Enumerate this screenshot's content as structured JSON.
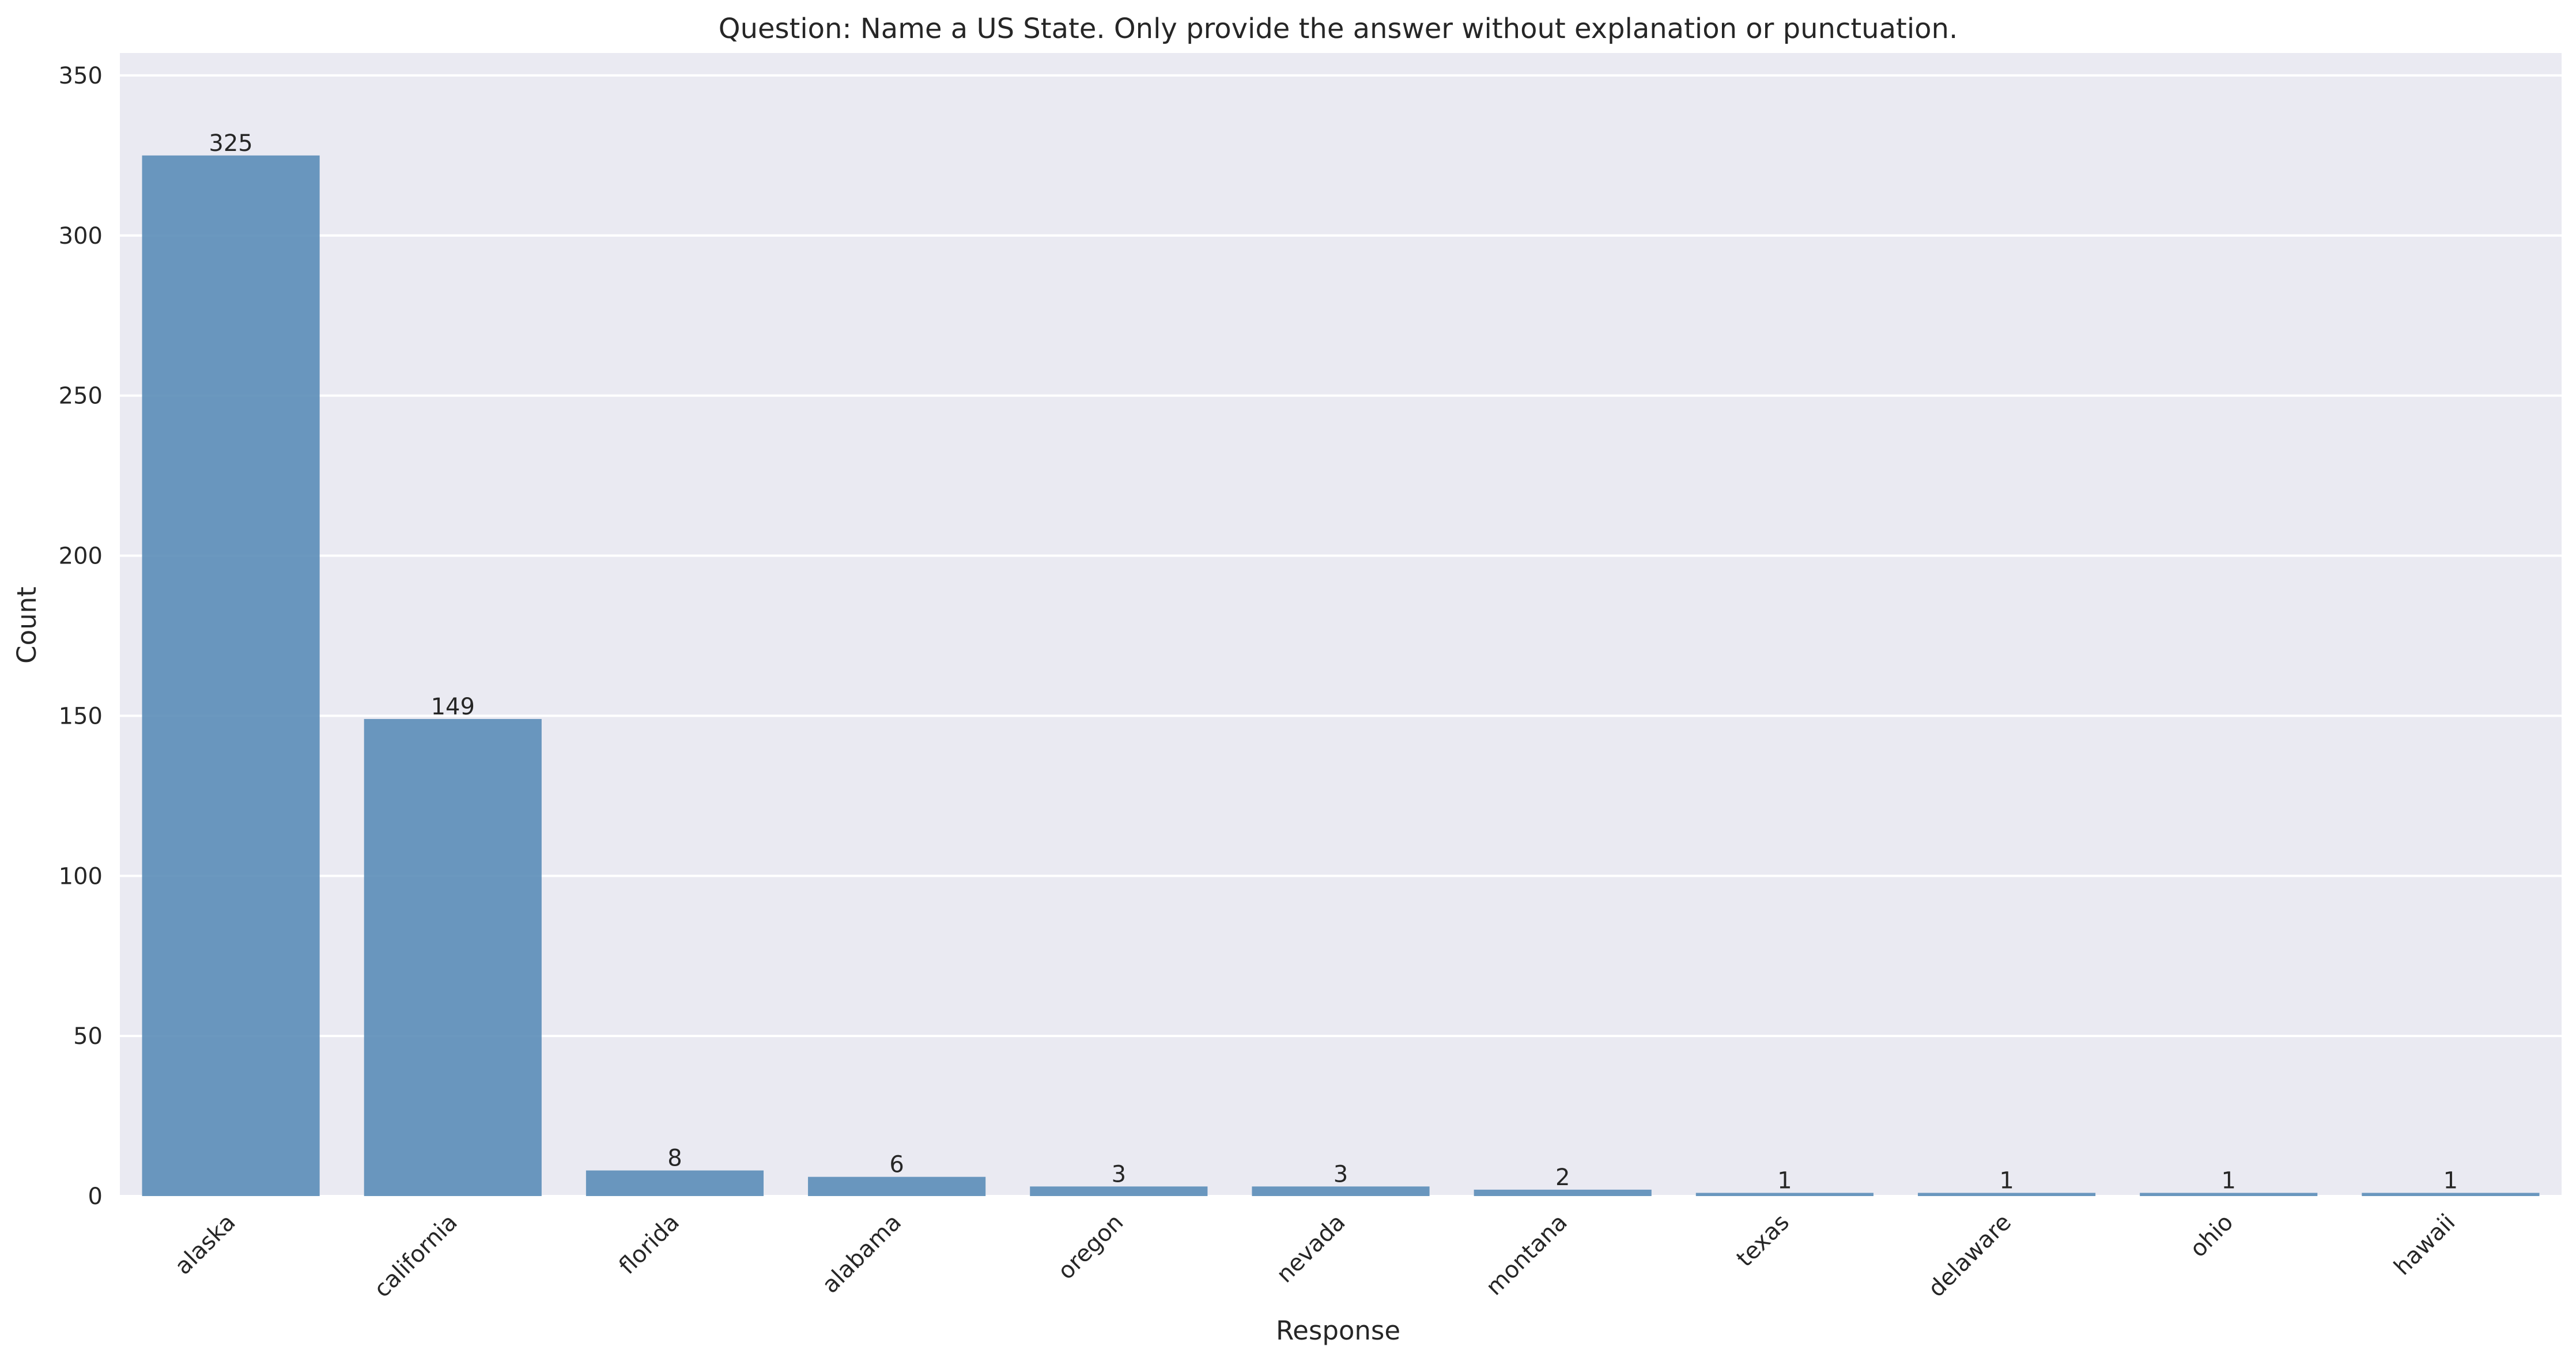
{
  "chart_data": {
    "type": "bar",
    "title": "Question: Name a US State. Only provide the answer without explanation or punctuation.",
    "xlabel": "Response",
    "ylabel": "Count",
    "categories": [
      "alaska",
      "california",
      "florida",
      "alabama",
      "oregon",
      "nevada",
      "montana",
      "texas",
      "delaware",
      "ohio",
      "hawaii"
    ],
    "values": [
      325,
      149,
      8,
      6,
      3,
      3,
      2,
      1,
      1,
      1,
      1
    ],
    "ylim": [
      0,
      357
    ],
    "yticks": [
      0,
      50,
      100,
      150,
      200,
      250,
      300,
      350
    ],
    "grid": true,
    "legend": "none",
    "colors": {
      "bar": "#5b8db8",
      "plot_background": "#eaeaf2",
      "grid": "#ffffff",
      "text": "#262626"
    }
  }
}
